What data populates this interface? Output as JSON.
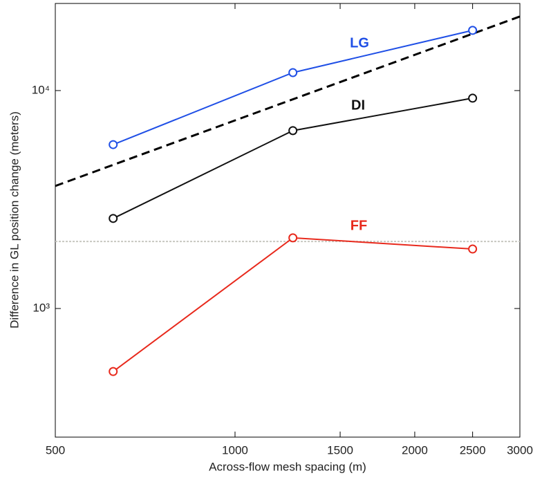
{
  "chart_data": {
    "type": "line",
    "x_label": "Across-flow mesh spacing (m)",
    "y_label": "Difference in GL position change (meters)",
    "xscale": "log",
    "yscale": "log",
    "xlim": [
      500,
      3000
    ],
    "xticks": [
      500,
      1000,
      1500,
      2000,
      2500,
      3000
    ],
    "ylim": [
      257,
      25100
    ],
    "yticks": [
      {
        "value": 1000,
        "label": "10³"
      },
      {
        "value": 10000,
        "label": "10⁴"
      }
    ],
    "x": [
      625,
      1250,
      2500
    ],
    "series": [
      {
        "name": "LG",
        "color": "#1f4fe6",
        "values": [
          5650,
          12090,
          18890
        ]
      },
      {
        "name": "DI",
        "color": "#111111",
        "values": [
          2590,
          6550,
          9230
        ]
      },
      {
        "name": "FF",
        "color": "#e8291c",
        "values": [
          514,
          2110,
          1875
        ]
      }
    ],
    "trend": {
      "x": [
        500,
        3000
      ],
      "values": [
        3650,
        21870
      ],
      "color": "#000000"
    },
    "reference_line": {
      "y": 2030,
      "color": "#c8c8c0"
    }
  }
}
